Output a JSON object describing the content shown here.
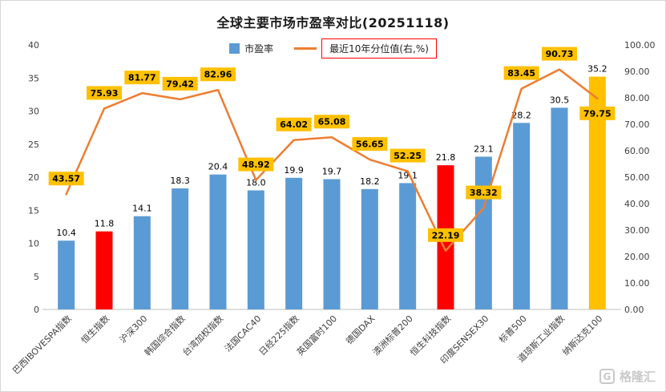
{
  "watermark": {
    "logo_glyph": "G",
    "text": "格隆汇"
  },
  "chart_data": {
    "type": "bar+line",
    "title": "全球主要市场市盈率对比(20251118)",
    "categories": [
      "巴西IBOVESPA指数",
      "恒生指数",
      "沪深300",
      "韩国综合指数",
      "台湾加权指数",
      "法国CAC40",
      "日经225指数",
      "英国富时100",
      "德国DAX",
      "澳洲标普200",
      "恒生科技指数",
      "印度SENSEX30",
      "标普500",
      "道琼斯工业指数",
      "纳斯达克100"
    ],
    "series": [
      {
        "name": "市盈率",
        "type": "bar",
        "axis": "left",
        "values": [
          10.4,
          11.8,
          14.1,
          18.3,
          20.4,
          18.0,
          19.9,
          19.7,
          18.2,
          19.1,
          21.8,
          23.1,
          28.2,
          30.5,
          35.2
        ],
        "colors": [
          "#5B9BD5",
          "#FF0000",
          "#5B9BD5",
          "#5B9BD5",
          "#5B9BD5",
          "#5B9BD5",
          "#5B9BD5",
          "#5B9BD5",
          "#5B9BD5",
          "#5B9BD5",
          "#FF0000",
          "#5B9BD5",
          "#5B9BD5",
          "#5B9BD5",
          "#FFC000"
        ]
      },
      {
        "name": "最近10年分位值(右,%)",
        "type": "line",
        "axis": "right",
        "values": [
          43.57,
          75.93,
          81.77,
          79.42,
          82.96,
          48.92,
          64.02,
          65.08,
          56.65,
          52.25,
          22.19,
          38.32,
          83.45,
          90.73,
          79.75
        ],
        "color": "#ED7D31",
        "label_bg": "#FFC000",
        "label_pos": [
          "above",
          "above",
          "above",
          "above",
          "above",
          "above",
          "above",
          "above",
          "above",
          "above",
          "above",
          "above",
          "above",
          "above",
          "below"
        ]
      }
    ],
    "left_axis": {
      "min": 0,
      "max": 40,
      "step": 5
    },
    "right_axis": {
      "min": 0,
      "max": 100,
      "step": 10,
      "decimals": 2
    },
    "legend_position": "top",
    "grid": false,
    "legend_box_border": "#FF0000"
  }
}
